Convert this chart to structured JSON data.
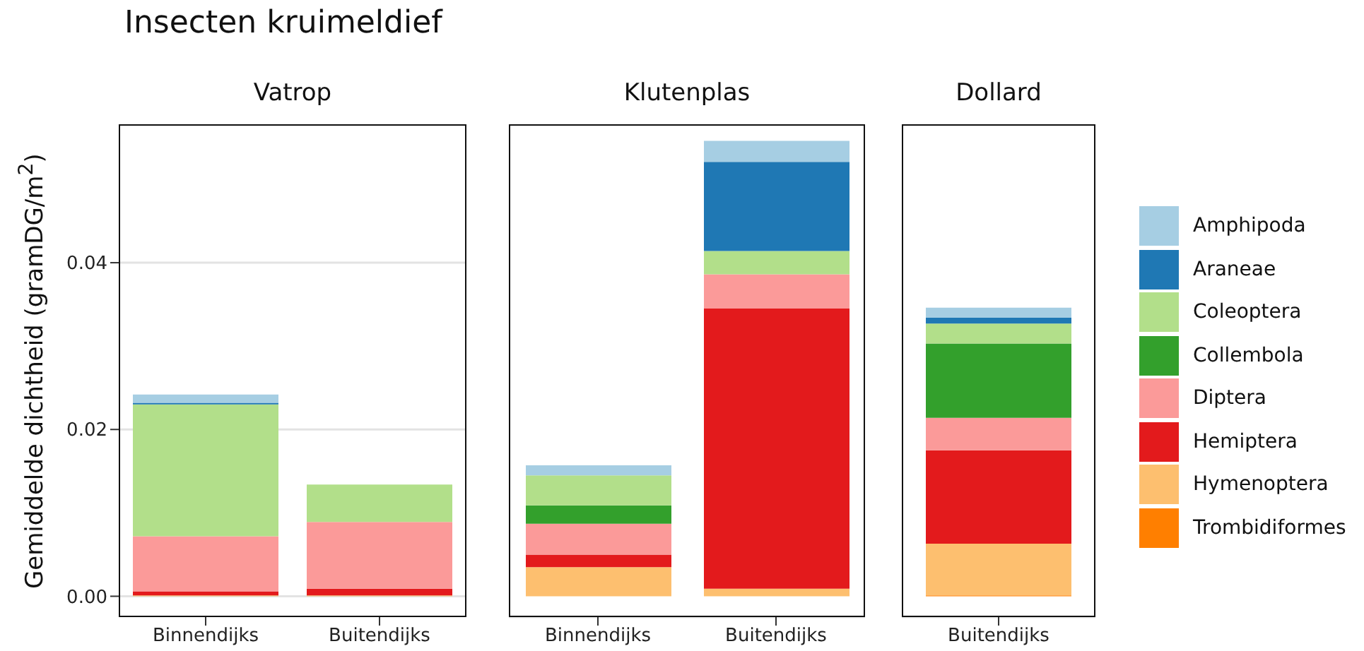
{
  "chart_data": [
    {
      "type": "bar",
      "title": "Insecten kruimeldief",
      "subtitle": "Vatrop",
      "ylabel": "Gemiddelde dichtheid (gramDG/m$^{2}$)",
      "categories": [
        "Binnendijks",
        "Buitendijks"
      ],
      "stacked": true,
      "grid": "y",
      "ylim": [
        -0.0025,
        0.0566
      ],
      "yticks": [
        {
          "value": 0,
          "label": "0.00"
        },
        {
          "value": 0.02,
          "label": "0.02"
        },
        {
          "value": 0.04,
          "label": "0.04"
        }
      ],
      "series": [
        {
          "color": "#ff7f00",
          "values": [
            null,
            null
          ]
        },
        {
          "color": "#fdbf6f",
          "values": [
            0.0001,
            0.0001
          ]
        },
        {
          "color": "#e31a1c",
          "values": [
            0.0005,
            0.0008
          ]
        },
        {
          "color": "#fb9a99",
          "values": [
            0.0066,
            0.008
          ]
        },
        {
          "color": "#33a02c",
          "values": [
            null,
            null
          ]
        },
        {
          "color": "#b2df8a",
          "values": [
            0.0158,
            0.0045
          ]
        },
        {
          "color": "#1f78b4",
          "values": [
            0.0002,
            null
          ]
        },
        {
          "color": "#a6cee3",
          "values": [
            0.001,
            null
          ]
        }
      ]
    },
    {
      "type": "bar",
      "subtitle": "Klutenplas",
      "categories": [
        "Binnendijks",
        "Buitendijks"
      ],
      "stacked": true,
      "grid": "y",
      "tick_labels": "x",
      "ylim": [
        -0.0025,
        0.0566
      ],
      "series": [
        {
          "color": "#ff7f00",
          "values": [
            null,
            null
          ]
        },
        {
          "color": "#fdbf6f",
          "values": [
            0.0035,
            0.0009
          ]
        },
        {
          "color": "#e31a1c",
          "values": [
            0.0015,
            0.0336
          ]
        },
        {
          "color": "#fb9a99",
          "values": [
            0.0037,
            0.0041
          ]
        },
        {
          "color": "#33a02c",
          "values": [
            0.0022,
            null
          ]
        },
        {
          "color": "#b2df8a",
          "values": [
            0.0036,
            0.0028
          ]
        },
        {
          "color": "#1f78b4",
          "values": [
            null,
            0.0107
          ]
        },
        {
          "color": "#a6cee3",
          "values": [
            0.0012,
            0.0025
          ]
        }
      ]
    },
    {
      "type": "bar",
      "subtitle": "Dollard",
      "categories": [
        "Buitendijks"
      ],
      "stacked": true,
      "grid": "y",
      "tick_labels": "x",
      "legend": "right",
      "ylim": [
        -0.0025,
        0.0566
      ],
      "series": [
        {
          "name": "Trombidiformes",
          "color": "#ff7f00",
          "values": [
            0.0001
          ]
        },
        {
          "name": "Hymenoptera",
          "color": "#fdbf6f",
          "values": [
            0.0062
          ]
        },
        {
          "name": "Hemiptera",
          "color": "#e31a1c",
          "values": [
            0.0112
          ]
        },
        {
          "name": "Diptera",
          "color": "#fb9a99",
          "values": [
            0.0039
          ]
        },
        {
          "name": "Collembola",
          "color": "#33a02c",
          "values": [
            0.0089
          ]
        },
        {
          "name": "Coleoptera",
          "color": "#b2df8a",
          "values": [
            0.0024
          ]
        },
        {
          "name": "Araneae",
          "color": "#1f78b4",
          "values": [
            0.0007
          ]
        },
        {
          "name": "Amphipoda",
          "color": "#a6cee3",
          "values": [
            0.0012
          ]
        }
      ]
    }
  ]
}
